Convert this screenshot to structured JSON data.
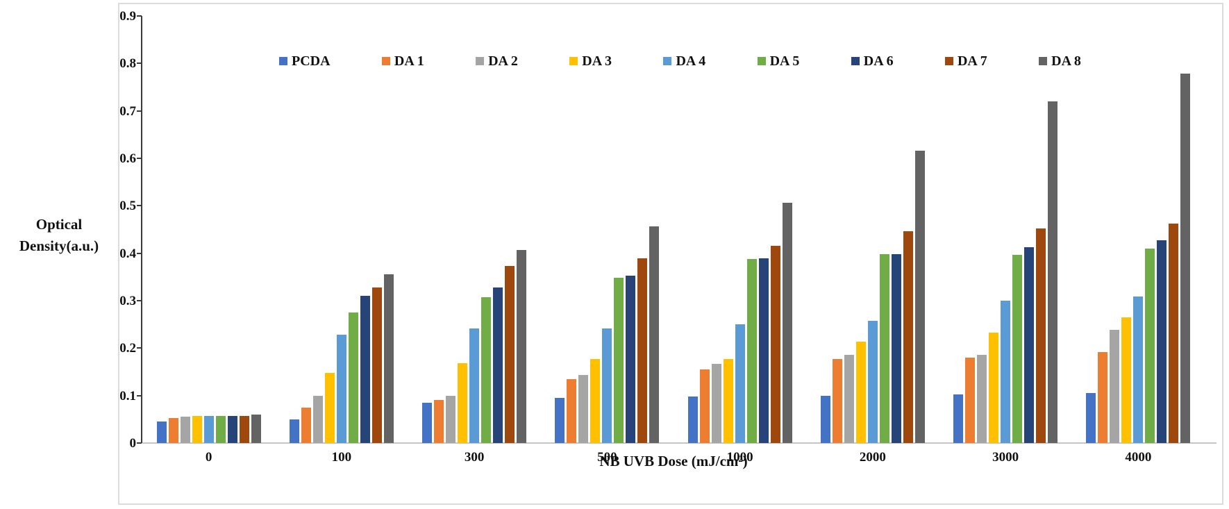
{
  "figure": {
    "y_axis_title_line1": "Optical",
    "y_axis_title_line2": "Density(a.u.)",
    "x_axis_title": "NB UVB Dose (mJ/cm²)"
  },
  "colors": {
    "y_axis_line": "#3a3a3a",
    "x_axis_line": "#c6c6c6",
    "figure_border": "#dcdcdc"
  },
  "chart_data": {
    "type": "bar",
    "title": "",
    "xlabel": "NB UVB Dose (mJ/cm²)",
    "ylabel": "Optical Density(a.u.)",
    "categories": [
      "0",
      "100",
      "300",
      "500",
      "1000",
      "2000",
      "3000",
      "4000"
    ],
    "ylim": [
      0,
      0.9
    ],
    "ytick_step": 0.1,
    "y_ticks": [
      "0",
      "0.1",
      "0.2",
      "0.3",
      "0.4",
      "0.5",
      "0.6",
      "0.7",
      "0.8",
      "0.9"
    ],
    "grid": false,
    "legend_position": "top-inside",
    "series": [
      {
        "name": "PCDA",
        "color": "#4472C4",
        "values": [
          0.045,
          0.05,
          0.085,
          0.095,
          0.098,
          0.1,
          0.103,
          0.106
        ]
      },
      {
        "name": "DA 1",
        "color": "#ED7D31",
        "values": [
          0.053,
          0.075,
          0.091,
          0.134,
          0.155,
          0.177,
          0.18,
          0.192
        ]
      },
      {
        "name": "DA 2",
        "color": "#A5A5A5",
        "values": [
          0.056,
          0.099,
          0.1,
          0.143,
          0.167,
          0.186,
          0.186,
          0.238
        ]
      },
      {
        "name": "DA 3",
        "color": "#FFC000",
        "values": [
          0.057,
          0.148,
          0.168,
          0.177,
          0.177,
          0.213,
          0.232,
          0.265
        ]
      },
      {
        "name": "DA 4",
        "color": "#5B9BD5",
        "values": [
          0.057,
          0.229,
          0.242,
          0.242,
          0.25,
          0.257,
          0.3,
          0.309
        ]
      },
      {
        "name": "DA 5",
        "color": "#70AD47",
        "values": [
          0.057,
          0.275,
          0.307,
          0.349,
          0.388,
          0.398,
          0.397,
          0.41
        ]
      },
      {
        "name": "DA 6",
        "color": "#264478",
        "values": [
          0.057,
          0.31,
          0.328,
          0.352,
          0.389,
          0.398,
          0.413,
          0.428
        ]
      },
      {
        "name": "DA 7",
        "color": "#9E480E",
        "values": [
          0.057,
          0.328,
          0.373,
          0.389,
          0.416,
          0.447,
          0.452,
          0.463
        ]
      },
      {
        "name": "DA 8",
        "color": "#636363",
        "values": [
          0.06,
          0.355,
          0.407,
          0.456,
          0.506,
          0.616,
          0.72,
          0.779
        ]
      }
    ]
  }
}
